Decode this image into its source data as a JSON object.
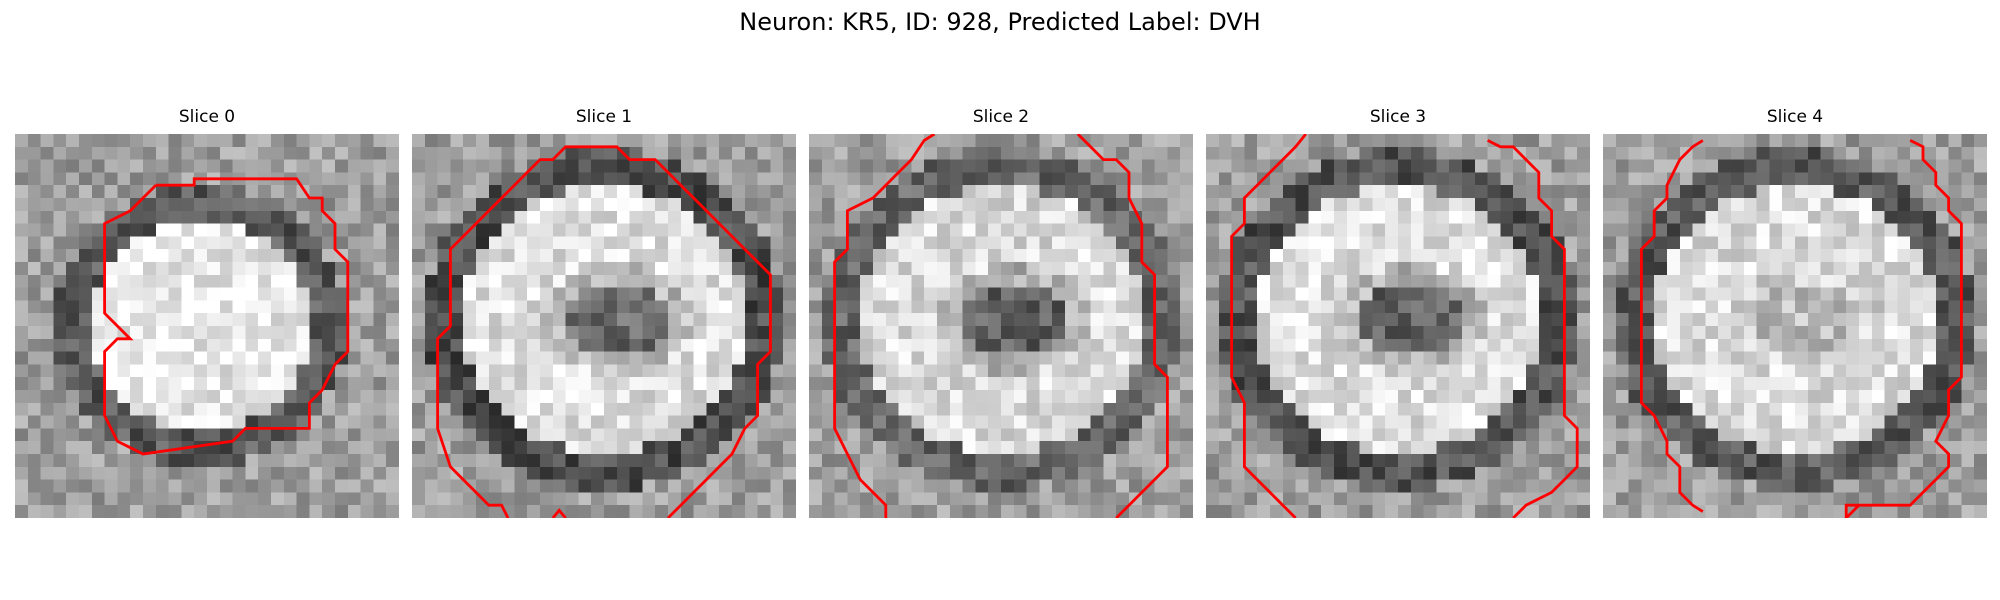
{
  "figure": {
    "title": "Neuron: KR5, ID: 928, Predicted Label: DVH"
  },
  "panels": [
    {
      "title": "Slice 0",
      "blob": {
        "ring_intensity": 0.35,
        "center_intensity": 0.92,
        "hole_intensity": 0.92
      }
    },
    {
      "title": "Slice 1",
      "blob": {
        "ring_intensity": 0.3,
        "center_intensity": 0.88,
        "hole_intensity": 0.1
      }
    },
    {
      "title": "Slice 2",
      "blob": {
        "ring_intensity": 0.4,
        "center_intensity": 0.86,
        "hole_intensity": 0.05
      }
    },
    {
      "title": "Slice 3",
      "blob": {
        "ring_intensity": 0.32,
        "center_intensity": 0.88,
        "hole_intensity": 0.05
      }
    },
    {
      "title": "Slice 4",
      "blob": {
        "ring_intensity": 0.35,
        "center_intensity": 0.87,
        "hole_intensity": 0.65
      }
    }
  ],
  "contour_color": "#ff0000"
}
